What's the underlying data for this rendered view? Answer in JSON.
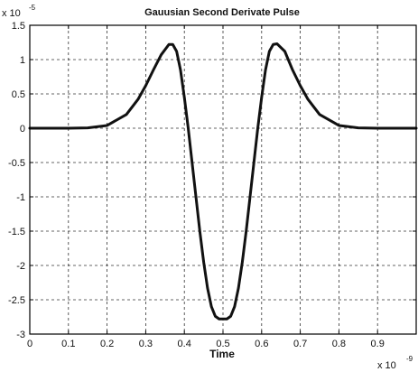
{
  "chart_data": {
    "type": "line",
    "title": "Gauusian Second Derivate Pulse",
    "xlabel": "Time",
    "ylabel": "",
    "x_exponent": {
      "base": "x 10",
      "power": "-9"
    },
    "y_exponent": {
      "base": "x 10",
      "power": "-5"
    },
    "xlim": [
      0,
      1
    ],
    "ylim": [
      -3,
      1.5
    ],
    "grid": true,
    "x_ticks": [
      0,
      0.1,
      0.2,
      0.3,
      0.4,
      0.5,
      0.6,
      0.7,
      0.8,
      0.9
    ],
    "x_tick_labels": [
      "0",
      "0.1",
      "0.2",
      "0.3",
      "0.4",
      "0.5",
      "0.6",
      "0.7",
      "0.8",
      "0.9"
    ],
    "y_ticks": [
      -3,
      -2.5,
      -2,
      -1.5,
      -1,
      -0.5,
      0,
      0.5,
      1,
      1.5
    ],
    "y_tick_labels": [
      "-3",
      "-2.5",
      "-2",
      "-1.5",
      "-1",
      "-0.5",
      "0",
      "0.5",
      "1",
      "1.5"
    ],
    "series": [
      {
        "x": [
          0,
          0.05,
          0.1,
          0.15,
          0.2,
          0.25,
          0.28,
          0.3,
          0.32,
          0.34,
          0.36,
          0.37,
          0.38,
          0.39,
          0.4,
          0.41,
          0.42,
          0.43,
          0.44,
          0.45,
          0.46,
          0.47,
          0.48,
          0.49,
          0.5,
          0.51,
          0.52,
          0.53,
          0.54,
          0.55,
          0.56,
          0.57,
          0.58,
          0.59,
          0.6,
          0.61,
          0.62,
          0.63,
          0.64,
          0.66,
          0.68,
          0.7,
          0.72,
          0.75,
          0.8,
          0.85,
          0.9,
          0.95,
          1.0
        ],
        "values": [
          0,
          0,
          0,
          0.005,
          0.04,
          0.2,
          0.42,
          0.62,
          0.85,
          1.07,
          1.22,
          1.22,
          1.12,
          0.85,
          0.45,
          0.0,
          -0.5,
          -1.0,
          -1.5,
          -1.95,
          -2.33,
          -2.6,
          -2.74,
          -2.78,
          -2.78,
          -2.78,
          -2.74,
          -2.6,
          -2.33,
          -1.95,
          -1.5,
          -1.0,
          -0.5,
          0.0,
          0.45,
          0.85,
          1.12,
          1.22,
          1.23,
          1.12,
          0.85,
          0.62,
          0.42,
          0.2,
          0.04,
          0.005,
          0,
          0,
          0
        ]
      }
    ]
  }
}
